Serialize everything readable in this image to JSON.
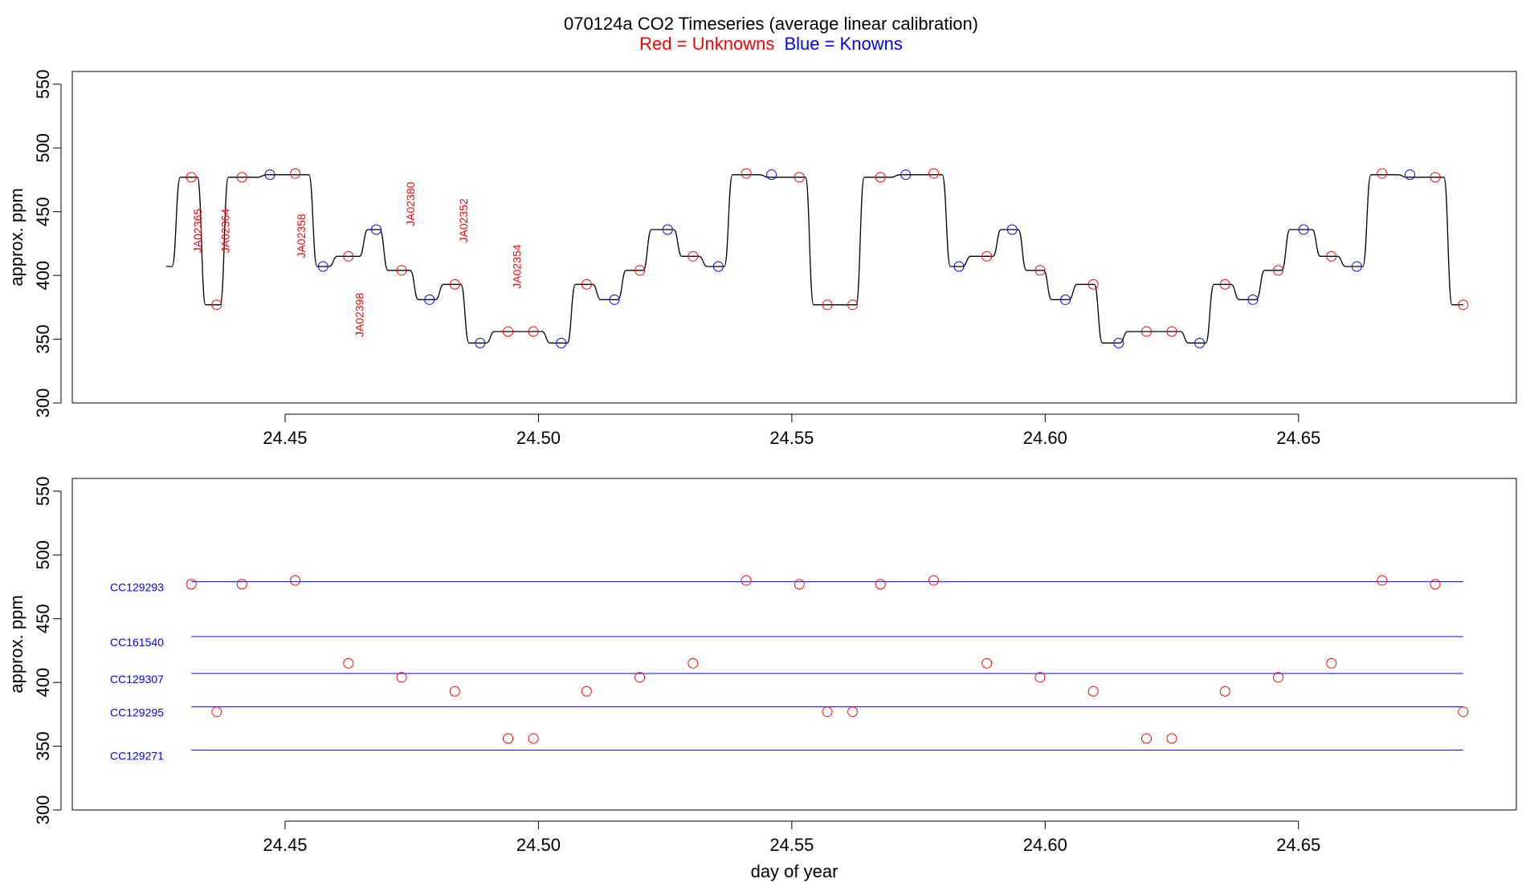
{
  "title": "070124a   CO2 Timeseries (average linear calibration)",
  "legend": {
    "red_label": "Red = Unknowns",
    "blue_label": "Blue = Knowns"
  },
  "colors": {
    "unknown": "#ff0000",
    "known": "#0000ff",
    "trace": "#000000"
  },
  "chart_data": [
    {
      "type": "line",
      "panel": "top",
      "ylabel": "approx. ppm",
      "xlabel": "",
      "xlim": [
        24.408,
        24.693
      ],
      "ylim": [
        300,
        560
      ],
      "yticks": [
        300,
        350,
        400,
        450,
        500,
        550
      ],
      "xticks": [
        24.45,
        24.5,
        24.55,
        24.6,
        24.65
      ],
      "xtick_labels": [
        "24.45",
        "24.50",
        "24.55",
        "24.60",
        "24.65"
      ],
      "grid": false,
      "legend_position": "top-center",
      "trace": {
        "levels": [
          407,
          477,
          377,
          477,
          479,
          407,
          415,
          436,
          404,
          381,
          393,
          347,
          356,
          347,
          393,
          381,
          404,
          436,
          415,
          407,
          479,
          477,
          377,
          477,
          479,
          407,
          415,
          436,
          404,
          381,
          393,
          347,
          356,
          347,
          393,
          381,
          404,
          436,
          415,
          407,
          479,
          477,
          377
        ],
        "transitions": [
          24.4285,
          24.4335,
          24.438,
          24.4455,
          24.4555,
          24.4595,
          24.4655,
          24.4695,
          24.4755,
          24.4805,
          24.4855,
          24.4905,
          24.5015,
          24.5065,
          24.5115,
          24.5165,
          24.5215,
          24.5275,
          24.5325,
          24.5375,
          24.5445,
          24.5535,
          24.5635,
          24.5705,
          24.5805,
          24.5845,
          24.5905,
          24.5955,
          24.6005,
          24.6055,
          24.6105,
          24.6155,
          24.6275,
          24.6325,
          24.6375,
          24.6425,
          24.6475,
          24.6535,
          24.6585,
          24.6635,
          24.6705,
          24.6795
        ],
        "x_start": 24.4265,
        "x_end": 24.6825
      },
      "unknowns": [
        {
          "x": 24.4315,
          "y": 477
        },
        {
          "x": 24.4365,
          "y": 377
        },
        {
          "x": 24.4415,
          "y": 477
        },
        {
          "x": 24.452,
          "y": 480
        },
        {
          "x": 24.4625,
          "y": 415
        },
        {
          "x": 24.473,
          "y": 404
        },
        {
          "x": 24.4835,
          "y": 393
        },
        {
          "x": 24.494,
          "y": 356
        },
        {
          "x": 24.499,
          "y": 356
        },
        {
          "x": 24.5095,
          "y": 393
        },
        {
          "x": 24.52,
          "y": 404
        },
        {
          "x": 24.5305,
          "y": 415
        },
        {
          "x": 24.541,
          "y": 480
        },
        {
          "x": 24.5515,
          "y": 477
        },
        {
          "x": 24.557,
          "y": 377
        },
        {
          "x": 24.562,
          "y": 377
        },
        {
          "x": 24.5675,
          "y": 477
        },
        {
          "x": 24.578,
          "y": 480
        },
        {
          "x": 24.5885,
          "y": 415
        },
        {
          "x": 24.599,
          "y": 404
        },
        {
          "x": 24.6095,
          "y": 393
        },
        {
          "x": 24.62,
          "y": 356
        },
        {
          "x": 24.625,
          "y": 356
        },
        {
          "x": 24.6355,
          "y": 393
        },
        {
          "x": 24.646,
          "y": 404
        },
        {
          "x": 24.6565,
          "y": 415
        },
        {
          "x": 24.6665,
          "y": 480
        },
        {
          "x": 24.677,
          "y": 477
        },
        {
          "x": 24.6825,
          "y": 377
        }
      ],
      "knowns": [
        {
          "x": 24.447,
          "y": 479
        },
        {
          "x": 24.4575,
          "y": 407
        },
        {
          "x": 24.468,
          "y": 436
        },
        {
          "x": 24.4785,
          "y": 381
        },
        {
          "x": 24.4885,
          "y": 347
        },
        {
          "x": 24.5045,
          "y": 347
        },
        {
          "x": 24.515,
          "y": 381
        },
        {
          "x": 24.5255,
          "y": 436
        },
        {
          "x": 24.5355,
          "y": 407
        },
        {
          "x": 24.546,
          "y": 479
        },
        {
          "x": 24.5725,
          "y": 479
        },
        {
          "x": 24.583,
          "y": 407
        },
        {
          "x": 24.5935,
          "y": 436
        },
        {
          "x": 24.604,
          "y": 381
        },
        {
          "x": 24.6145,
          "y": 347
        },
        {
          "x": 24.6305,
          "y": 347
        },
        {
          "x": 24.641,
          "y": 381
        },
        {
          "x": 24.651,
          "y": 436
        },
        {
          "x": 24.6615,
          "y": 407
        },
        {
          "x": 24.672,
          "y": 479
        }
      ],
      "annotations": [
        {
          "text": "JA02365",
          "x": 24.4335,
          "y": 435
        },
        {
          "text": "JA02364",
          "x": 24.439,
          "y": 435
        },
        {
          "text": "JA02358",
          "x": 24.454,
          "y": 431
        },
        {
          "text": "JA02398",
          "x": 24.4655,
          "y": 369
        },
        {
          "text": "JA02380",
          "x": 24.4755,
          "y": 456
        },
        {
          "text": "JA02352",
          "x": 24.486,
          "y": 443
        },
        {
          "text": "JA02354",
          "x": 24.4965,
          "y": 407
        }
      ]
    },
    {
      "type": "scatter",
      "panel": "bottom",
      "ylabel": "approx. ppm",
      "xlabel": "day of year",
      "xlim": [
        24.408,
        24.693
      ],
      "ylim": [
        300,
        560
      ],
      "yticks": [
        300,
        350,
        400,
        450,
        500,
        550
      ],
      "xticks": [
        24.45,
        24.5,
        24.55,
        24.6,
        24.65
      ],
      "xtick_labels": [
        "24.45",
        "24.50",
        "24.55",
        "24.60",
        "24.65"
      ],
      "grid": false,
      "reference_lines": [
        {
          "name": "CC129293",
          "y": 479
        },
        {
          "name": "CC161540",
          "y": 436
        },
        {
          "name": "CC129307",
          "y": 407
        },
        {
          "name": "CC129295",
          "y": 381
        },
        {
          "name": "CC129271",
          "y": 347
        }
      ],
      "reference_x_range": [
        24.4315,
        24.6825
      ],
      "unknowns": [
        {
          "x": 24.4315,
          "y": 477
        },
        {
          "x": 24.4365,
          "y": 377
        },
        {
          "x": 24.4415,
          "y": 477
        },
        {
          "x": 24.452,
          "y": 480
        },
        {
          "x": 24.4625,
          "y": 415
        },
        {
          "x": 24.473,
          "y": 404
        },
        {
          "x": 24.4835,
          "y": 393
        },
        {
          "x": 24.494,
          "y": 356
        },
        {
          "x": 24.499,
          "y": 356
        },
        {
          "x": 24.5095,
          "y": 393
        },
        {
          "x": 24.52,
          "y": 404
        },
        {
          "x": 24.5305,
          "y": 415
        },
        {
          "x": 24.541,
          "y": 480
        },
        {
          "x": 24.5515,
          "y": 477
        },
        {
          "x": 24.557,
          "y": 377
        },
        {
          "x": 24.562,
          "y": 377
        },
        {
          "x": 24.5675,
          "y": 477
        },
        {
          "x": 24.578,
          "y": 480
        },
        {
          "x": 24.5885,
          "y": 415
        },
        {
          "x": 24.599,
          "y": 404
        },
        {
          "x": 24.6095,
          "y": 393
        },
        {
          "x": 24.62,
          "y": 356
        },
        {
          "x": 24.625,
          "y": 356
        },
        {
          "x": 24.6355,
          "y": 393
        },
        {
          "x": 24.646,
          "y": 404
        },
        {
          "x": 24.6565,
          "y": 415
        },
        {
          "x": 24.6665,
          "y": 480
        },
        {
          "x": 24.677,
          "y": 477
        },
        {
          "x": 24.6825,
          "y": 377
        }
      ]
    }
  ]
}
